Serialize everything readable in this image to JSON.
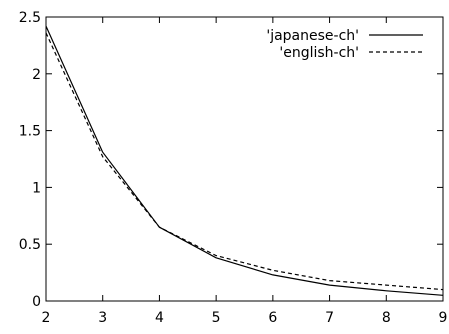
{
  "chart_data": {
    "type": "line",
    "title": "",
    "xlabel": "",
    "ylabel": "",
    "xlim": [
      2,
      9
    ],
    "ylim": [
      0,
      2.5
    ],
    "grid": false,
    "legend_position": "top-right",
    "x_ticks": [
      2,
      3,
      4,
      5,
      6,
      7,
      8,
      9
    ],
    "x_tick_labels": [
      "2",
      "3",
      "4",
      "5",
      "6",
      "7",
      "8",
      "9"
    ],
    "y_ticks": [
      0,
      0.5,
      1,
      1.5,
      2,
      2.5
    ],
    "y_tick_labels": [
      "0",
      "0.5",
      "1",
      "1.5",
      "2",
      "2.5"
    ],
    "x": [
      2,
      3,
      4,
      5,
      6,
      7,
      8,
      9
    ],
    "series": [
      {
        "name": "'japanese-ch'",
        "values": [
          2.42,
          1.31,
          0.65,
          0.38,
          0.23,
          0.14,
          0.09,
          0.05
        ],
        "line_style": "solid",
        "color": "#000000"
      },
      {
        "name": "'english-ch'",
        "values": [
          2.36,
          1.27,
          0.65,
          0.4,
          0.27,
          0.18,
          0.14,
          0.1
        ],
        "line_style": "dashed",
        "color": "#000000"
      }
    ]
  }
}
